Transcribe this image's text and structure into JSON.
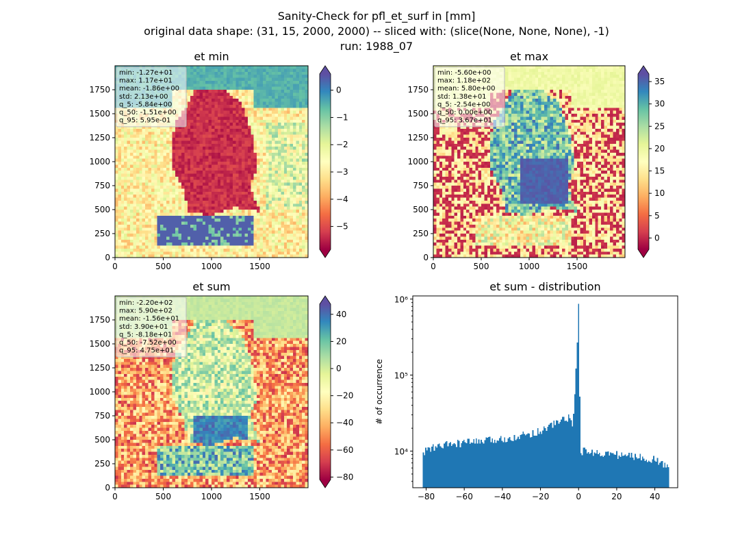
{
  "figure": {
    "title_lines": [
      "Sanity-Check for pfl_et_surf in [mm]",
      "original data shape: (31, 15, 2000, 2000) -- sliced with: (slice(None, None, None), -1)",
      "run: 1988_07"
    ]
  },
  "chart_data": [
    {
      "type": "heatmap",
      "title": "et min",
      "xlim": [
        0,
        2000
      ],
      "ylim": [
        0,
        2000
      ],
      "xticks": [
        0,
        500,
        1000,
        1500
      ],
      "yticks": [
        0,
        250,
        500,
        750,
        1000,
        1250,
        1500,
        1750
      ],
      "colormap": "Spectral",
      "colorbar": {
        "vmin": -5.84,
        "vmax": 0.595,
        "ticks": [
          0,
          -1,
          -2,
          -3,
          -4,
          -5
        ],
        "extend": "both"
      },
      "stats": [
        "min: -1.27e+01",
        "max: 1.17e+01",
        "mean: -1.86e+00",
        "std: 2.13e+00",
        "q_5: -5.84e+00",
        "q_50: -1.51e+00",
        "q_95: 5.95e-01"
      ]
    },
    {
      "type": "heatmap",
      "title": "et max",
      "xlim": [
        0,
        2000
      ],
      "ylim": [
        0,
        2000
      ],
      "xticks": [
        0,
        500,
        1000,
        1500
      ],
      "yticks": [
        0,
        250,
        500,
        750,
        1000,
        1250,
        1500,
        1750
      ],
      "colormap": "Spectral",
      "colorbar": {
        "vmin": -2.54,
        "vmax": 36.7,
        "ticks": [
          35,
          30,
          25,
          20,
          15,
          10,
          5,
          0
        ],
        "extend": "both"
      },
      "stats": [
        "min: -5.60e+00",
        "max: 1.18e+02",
        "mean: 5.80e+00",
        "std: 1.38e+01",
        "q_5: -2.54e+00",
        "q_50: 0.00e+00",
        "q_95: 3.67e+01"
      ]
    },
    {
      "type": "heatmap",
      "title": "et sum",
      "xlim": [
        0,
        2000
      ],
      "ylim": [
        0,
        2000
      ],
      "xticks": [
        0,
        500,
        1000,
        1500
      ],
      "yticks": [
        0,
        250,
        500,
        750,
        1000,
        1250,
        1500,
        1750
      ],
      "colormap": "Spectral",
      "colorbar": {
        "vmin": -81.8,
        "vmax": 47.5,
        "ticks": [
          40,
          20,
          0,
          -20,
          -40,
          -60,
          -80
        ],
        "extend": "both"
      },
      "stats": [
        "min: -2.20e+02",
        "max: 5.90e+02",
        "mean: -1.56e+01",
        "std: 3.90e+01",
        "q_5: -8.18e+01",
        "q_50: -7.52e+00",
        "q_95: 4.75e+01"
      ]
    },
    {
      "type": "bar",
      "title": "et sum - distribution",
      "ylabel": "# of occurrence",
      "xlabel": "",
      "yscale": "log",
      "xlim": [
        -87,
        52
      ],
      "ylim": [
        3300,
        1100000
      ],
      "xticks": [
        -80,
        -60,
        -40,
        -20,
        0,
        20,
        40
      ],
      "yticks": [
        {
          "value": 10000,
          "label": "10⁴"
        },
        {
          "value": 100000,
          "label": "10⁵"
        },
        {
          "value": 1000000,
          "label": "10⁶"
        }
      ],
      "bar_color": "#1f77b4",
      "bin_edges_range": [
        -81.8,
        47.5
      ],
      "bin_count": 200,
      "profile": [
        {
          "x": -81.8,
          "y": 8500
        },
        {
          "x": -80,
          "y": 10500
        },
        {
          "x": -70,
          "y": 12000
        },
        {
          "x": -60,
          "y": 13000
        },
        {
          "x": -50,
          "y": 13500
        },
        {
          "x": -40,
          "y": 14500
        },
        {
          "x": -30,
          "y": 16000
        },
        {
          "x": -20,
          "y": 18500
        },
        {
          "x": -10,
          "y": 25000
        },
        {
          "x": -5,
          "y": 28000
        },
        {
          "x": -3,
          "y": 20000
        },
        {
          "x": -2,
          "y": 60000
        },
        {
          "x": -1,
          "y": 180000
        },
        {
          "x": 0,
          "y": 800000
        },
        {
          "x": 0.5,
          "y": 80000
        },
        {
          "x": 1.2,
          "y": 10000
        },
        {
          "x": 10,
          "y": 9500
        },
        {
          "x": 20,
          "y": 9000
        },
        {
          "x": 30,
          "y": 8500
        },
        {
          "x": 40,
          "y": 7800
        },
        {
          "x": 47.5,
          "y": 6000
        }
      ]
    }
  ]
}
